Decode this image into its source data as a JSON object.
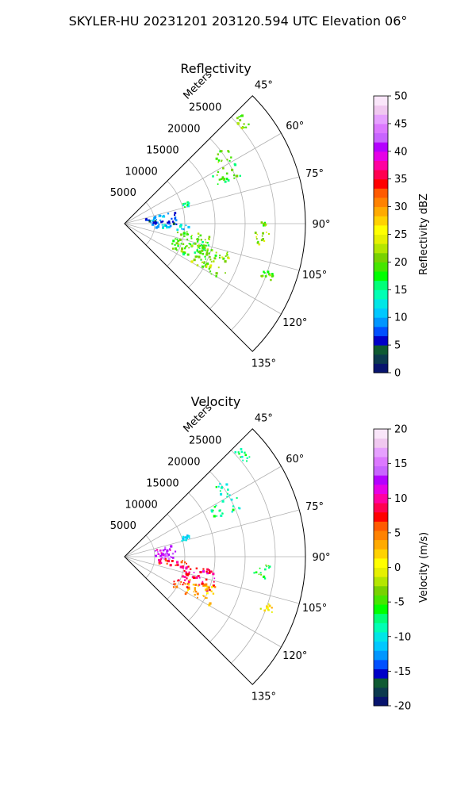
{
  "figure_title": "SKYLER-HU  20231201  203120.594 UTC Elevation 06°",
  "chart_data": [
    {
      "type": "scatter",
      "title": "Reflectivity",
      "projection": "polar-sector",
      "theta_ticks": [
        "45°",
        "60°",
        "75°",
        "90°",
        "105°",
        "120°",
        "135°"
      ],
      "theta_values": [
        45,
        60,
        75,
        90,
        105,
        120,
        135
      ],
      "r_label": "Meters",
      "r_ticks": [
        "5000",
        "10000",
        "15000",
        "20000",
        "25000"
      ],
      "r_values": [
        5000,
        10000,
        15000,
        20000,
        25000
      ],
      "r_max": 30000,
      "grid": true,
      "colorbar": {
        "label": "Reflectivity dBZ",
        "range": [
          0,
          50
        ],
        "ticks": [
          "0",
          "5",
          "10",
          "15",
          "20",
          "25",
          "30",
          "35",
          "40",
          "45",
          "50"
        ],
        "tick_values": [
          0,
          5,
          10,
          15,
          20,
          25,
          30,
          35,
          40,
          45,
          50
        ],
        "colors": [
          "#08146e",
          "#0c3a4e",
          "#0f5a32",
          "#0000c8",
          "#0050ff",
          "#0096ff",
          "#00c8ff",
          "#00e6e6",
          "#00ffb4",
          "#00ff78",
          "#00ff00",
          "#46e600",
          "#78d200",
          "#b4e600",
          "#e6f000",
          "#ffff00",
          "#ffd200",
          "#ffaa00",
          "#ff8200",
          "#ff5a00",
          "#ff0000",
          "#ff0050",
          "#ff00a0",
          "#e600e6",
          "#b400ff",
          "#c864ff",
          "#dc78ff",
          "#e6a0ff",
          "#f0c8f0",
          "#fae6fa"
        ]
      },
      "clusters": [
        {
          "theta": [
            46,
            52
          ],
          "r": [
            25000,
            26500
          ],
          "value": 20
        },
        {
          "theta": [
            52,
            60
          ],
          "r": [
            18500,
            21000
          ],
          "value": 20
        },
        {
          "theta": [
            60,
            67
          ],
          "r": [
            16000,
            21000
          ],
          "value": 18
        },
        {
          "theta": [
            70,
            74
          ],
          "r": [
            9800,
            11200
          ],
          "value": 15
        },
        {
          "theta": [
            75,
            82
          ],
          "r": [
            3500,
            8500
          ],
          "value": 9
        },
        {
          "theta": [
            82,
            90
          ],
          "r": [
            4000,
            8500
          ],
          "value": 7
        },
        {
          "theta": [
            90,
            96
          ],
          "r": [
            4500,
            10500
          ],
          "value": 12
        },
        {
          "theta": [
            97,
            117
          ],
          "r": [
            8000,
            14500
          ],
          "value": 19
        },
        {
          "theta": [
            104,
            120
          ],
          "r": [
            12500,
            18500
          ],
          "value": 21
        },
        {
          "theta": [
            93,
            99
          ],
          "r": [
            21500,
            24000
          ],
          "value": 22
        },
        {
          "theta": [
            89,
            91
          ],
          "r": [
            22500,
            23500
          ],
          "value": 20
        },
        {
          "theta": [
            108,
            111
          ],
          "r": [
            24000,
            26000
          ],
          "value": 20
        }
      ]
    },
    {
      "type": "scatter",
      "title": "Velocity",
      "projection": "polar-sector",
      "theta_ticks": [
        "45°",
        "60°",
        "75°",
        "90°",
        "105°",
        "120°",
        "135°"
      ],
      "theta_values": [
        45,
        60,
        75,
        90,
        105,
        120,
        135
      ],
      "r_label": "Meters",
      "r_ticks": [
        "5000",
        "10000",
        "15000",
        "20000",
        "25000"
      ],
      "r_values": [
        5000,
        10000,
        15000,
        20000,
        25000
      ],
      "r_max": 30000,
      "grid": true,
      "colorbar": {
        "label": "Velocity (m/s)",
        "range": [
          -20,
          20
        ],
        "ticks": [
          "-20",
          "-15",
          "-10",
          "-5",
          "0",
          "5",
          "10",
          "15",
          "20"
        ],
        "tick_values": [
          -20,
          -15,
          -10,
          -5,
          0,
          5,
          10,
          15,
          20
        ],
        "colors": [
          "#08146e",
          "#0c3a4e",
          "#0f5a32",
          "#0000c8",
          "#0050ff",
          "#0096ff",
          "#00c8ff",
          "#00e6e6",
          "#00ffb4",
          "#00ff78",
          "#00ff00",
          "#46e600",
          "#78d200",
          "#b4e600",
          "#e6f000",
          "#ffff00",
          "#ffd200",
          "#ffaa00",
          "#ff8200",
          "#ff5a00",
          "#ff0000",
          "#ff0050",
          "#ff00a0",
          "#e600e6",
          "#b400ff",
          "#c864ff",
          "#dc78ff",
          "#e6a0ff",
          "#f0c8f0",
          "#fae6fa"
        ]
      },
      "clusters": [
        {
          "theta": [
            46,
            52
          ],
          "r": [
            25000,
            26500
          ],
          "value": -8
        },
        {
          "theta": [
            52,
            60
          ],
          "r": [
            18500,
            21000
          ],
          "value": -8
        },
        {
          "theta": [
            60,
            67
          ],
          "r": [
            16000,
            21000
          ],
          "value": -8
        },
        {
          "theta": [
            70,
            74
          ],
          "r": [
            9800,
            11200
          ],
          "value": -11
        },
        {
          "theta": [
            75,
            86
          ],
          "r": [
            5000,
            8500
          ],
          "value": 12
        },
        {
          "theta": [
            86,
            92
          ],
          "r": [
            4500,
            8000
          ],
          "value": 14
        },
        {
          "theta": [
            92,
            100
          ],
          "r": [
            5500,
            10500
          ],
          "value": 8
        },
        {
          "theta": [
            98,
            112
          ],
          "r": [
            9500,
            15500
          ],
          "value": 9
        },
        {
          "theta": [
            108,
            120
          ],
          "r": [
            11000,
            16000
          ],
          "value": 3
        },
        {
          "theta": [
            112,
            122
          ],
          "r": [
            9000,
            12000
          ],
          "value": 6
        },
        {
          "theta": [
            93,
            99
          ],
          "r": [
            21500,
            24000
          ],
          "value": -6
        },
        {
          "theta": [
            108,
            111
          ],
          "r": [
            24000,
            26000
          ],
          "value": 1
        }
      ]
    }
  ]
}
